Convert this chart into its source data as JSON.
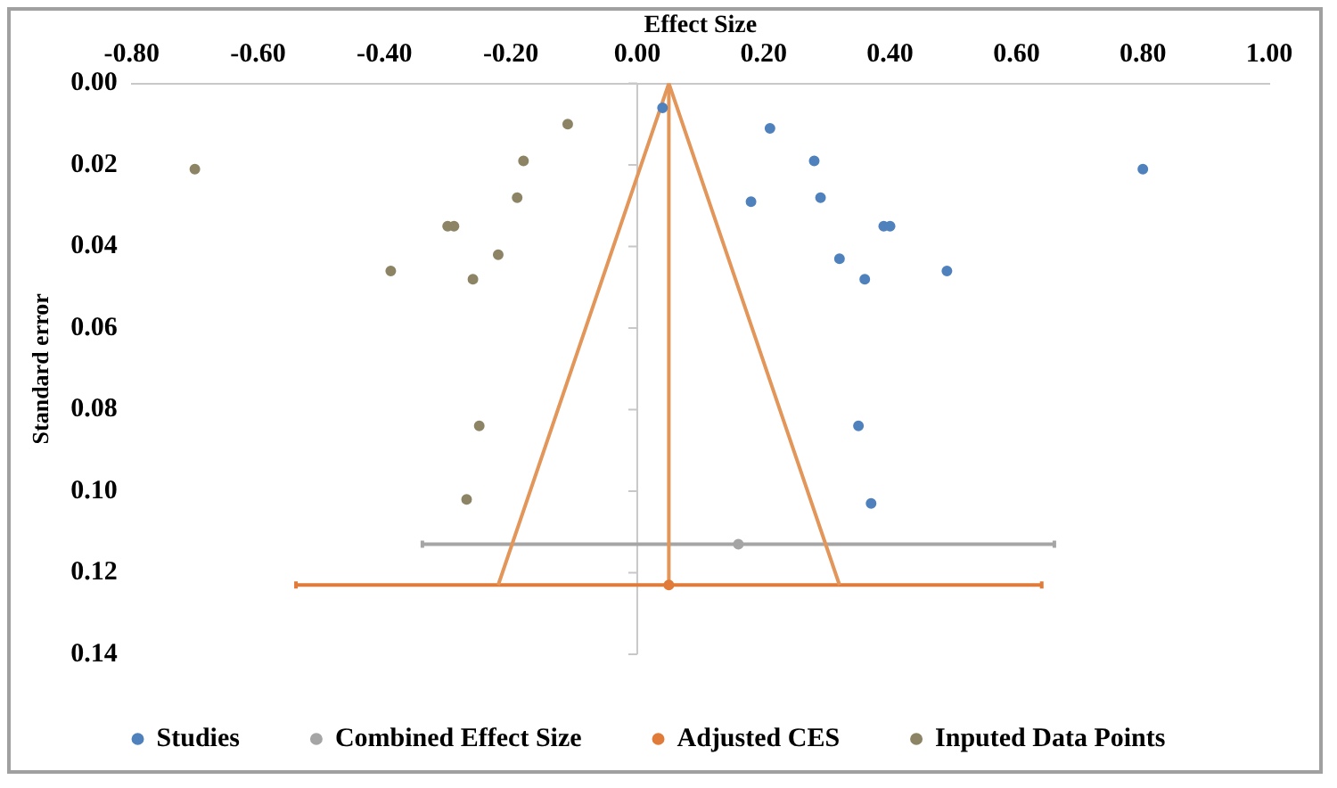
{
  "chart_data": {
    "type": "scatter",
    "xlabel": "Effect Size",
    "ylabel": "Standard error",
    "xlim": [
      -0.8,
      1
    ],
    "xticks": [
      {
        "value": -0.8,
        "label": "-0.80"
      },
      {
        "value": -0.6,
        "label": "-0.60"
      },
      {
        "value": -0.4,
        "label": "-0.40"
      },
      {
        "value": -0.2,
        "label": "-0.20"
      },
      {
        "value": 0,
        "label": "0.00"
      },
      {
        "value": 0.2,
        "label": "0.20"
      },
      {
        "value": 0.4,
        "label": "0.40"
      },
      {
        "value": 0.6,
        "label": "0.60"
      },
      {
        "value": 0.8,
        "label": "0.80"
      },
      {
        "value": 1,
        "label": "1.00"
      }
    ],
    "ylim": [
      0.14,
      0
    ],
    "yticks": [
      {
        "value": 0,
        "label": "0.00"
      },
      {
        "value": 0.02,
        "label": "0.02"
      },
      {
        "value": 0.04,
        "label": "0.04"
      },
      {
        "value": 0.06,
        "label": "0.06"
      },
      {
        "value": 0.08,
        "label": "0.08"
      },
      {
        "value": 0.1,
        "label": "0.10"
      },
      {
        "value": 0.12,
        "label": "0.12"
      },
      {
        "value": 0.14,
        "label": "0.14"
      }
    ],
    "legend": "bottom",
    "marker": "circle",
    "series": [
      {
        "type": "line",
        "marker": "none",
        "color": "#e3965a",
        "x": [
          -0.22,
          0.05,
          0.32
        ],
        "values": [
          0.123,
          0,
          0.123
        ]
      },
      {
        "type": "line",
        "marker": "none",
        "color": "#e3965a",
        "x": [
          0.05,
          0.05
        ],
        "values": [
          0,
          0.123
        ]
      },
      {
        "name": "Studies",
        "color": "#4f81bd",
        "x": [
          0.04,
          0.21,
          0.28,
          0.8,
          0.18,
          0.29,
          0.39,
          0.4,
          0.32,
          0.49,
          0.36,
          0.35,
          0.37
        ],
        "values": [
          0.006,
          0.011,
          0.019,
          0.021,
          0.029,
          0.028,
          0.035,
          0.035,
          0.043,
          0.046,
          0.048,
          0.084,
          0.103
        ]
      },
      {
        "name": "Combined Effect Size",
        "color": "#a5a5a5",
        "x": [
          0.16
        ],
        "values": [
          0.113
        ],
        "xerrors": [
          [
            -0.34,
            0.66
          ]
        ]
      },
      {
        "name": "Adjusted CES",
        "color": "#e07b39",
        "x": [
          0.05
        ],
        "values": [
          0.123
        ],
        "xerrors": [
          [
            -0.54,
            0.64
          ]
        ]
      },
      {
        "name": "Inputed Data Points",
        "color": "#8c8464",
        "x": [
          -0.11,
          -0.7,
          -0.18,
          -0.19,
          -0.3,
          -0.29,
          -0.22,
          -0.39,
          -0.26,
          -0.25,
          -0.27
        ],
        "values": [
          0.01,
          0.021,
          0.019,
          0.028,
          0.035,
          0.035,
          0.042,
          0.046,
          0.048,
          0.084,
          0.102
        ]
      }
    ]
  }
}
